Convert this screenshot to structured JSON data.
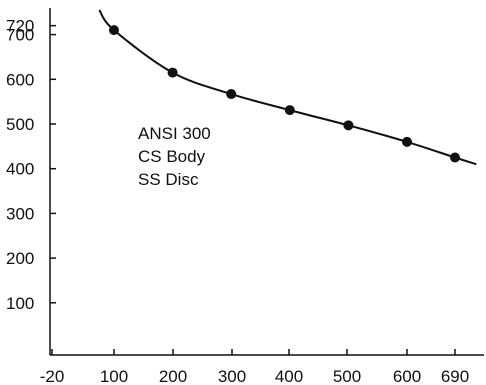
{
  "chart_data": {
    "type": "line",
    "title": "",
    "xlabel": "",
    "ylabel": "",
    "x_ticks": [
      "-20",
      "100",
      "200",
      "300",
      "400",
      "500",
      "600",
      "690"
    ],
    "y_ticks": [
      "100",
      "200",
      "300",
      "400",
      "500",
      "600",
      "700",
      "720"
    ],
    "xlim": [
      -20,
      720
    ],
    "ylim": [
      0,
      720
    ],
    "grid": false,
    "annotation": [
      "ANSI 300",
      "CS Body",
      "SS Disc"
    ],
    "series": [
      {
        "points": [
          {
            "x": 100,
            "y": 710
          },
          {
            "x": 200,
            "y": 615
          },
          {
            "x": 300,
            "y": 567
          },
          {
            "x": 400,
            "y": 531
          },
          {
            "x": 500,
            "y": 497
          },
          {
            "x": 600,
            "y": 460
          },
          {
            "x": 690,
            "y": 425
          }
        ],
        "curve_start": {
          "x": 75,
          "y": 755
        },
        "curve_end": {
          "x": 730,
          "y": 410
        }
      }
    ],
    "colors": {
      "line": "#111111",
      "marker": "#111111",
      "axis": "#111111"
    }
  }
}
